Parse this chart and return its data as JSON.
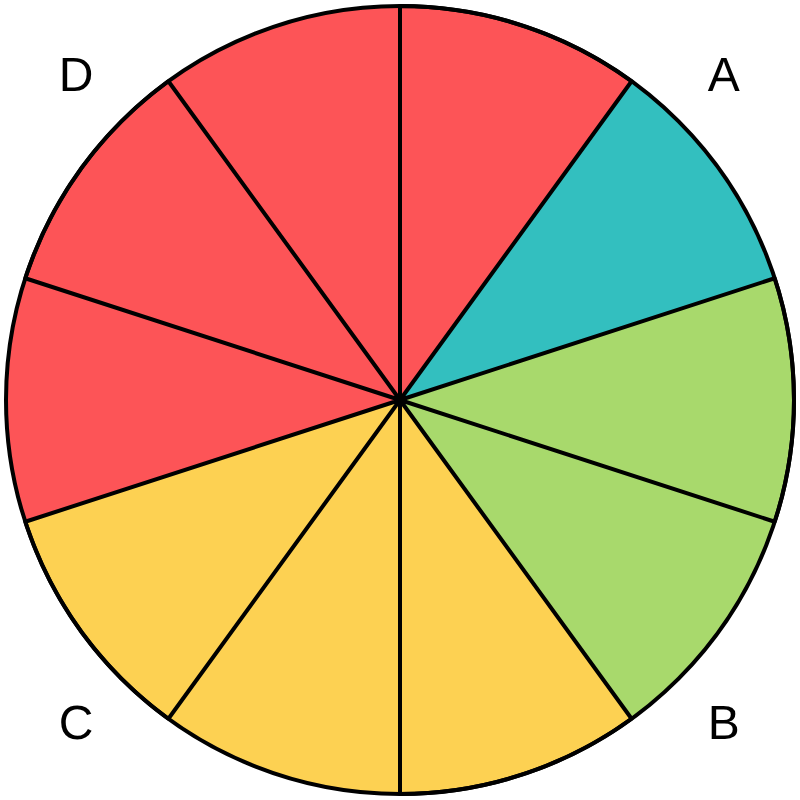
{
  "chart_data": {
    "type": "pie",
    "categories": [
      "A",
      "B",
      "C",
      "D"
    ],
    "values": [
      10,
      20,
      30,
      40
    ],
    "colors": [
      "#33bfbf",
      "#a8d96c",
      "#fdd152",
      "#fd5457"
    ]
  }
}
